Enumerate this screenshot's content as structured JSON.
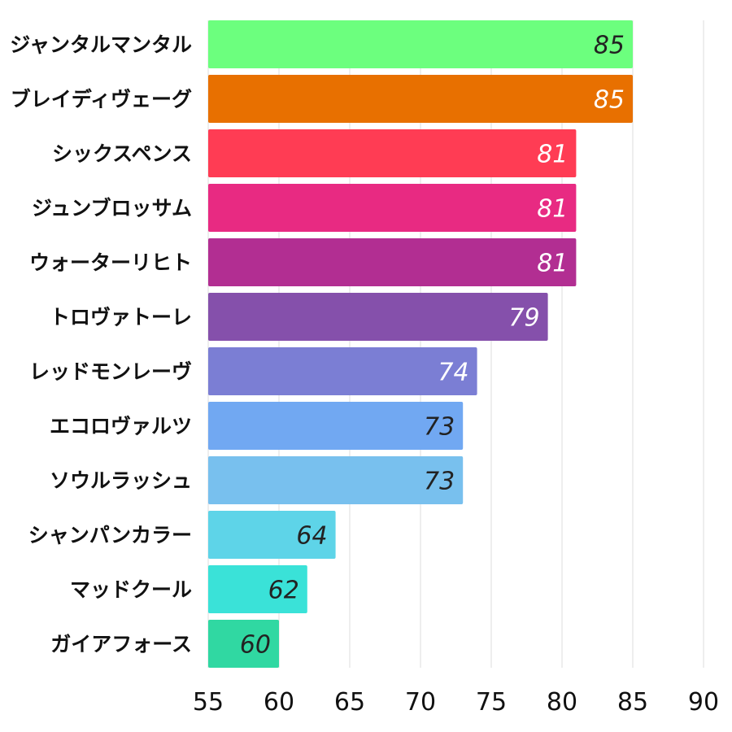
{
  "chart_data": {
    "type": "bar",
    "orientation": "horizontal",
    "categories": [
      "ジャンタルマンタル",
      "ブレイディヴェーグ",
      "シックスペンス",
      "ジュンブロッサム",
      "ウォーターリヒト",
      "トロヴァトーレ",
      "レッドモンレーヴ",
      "エコロヴァルツ",
      "ソウルラッシュ",
      "シャンパンカラー",
      "マッドクール",
      "ガイアフォース"
    ],
    "values": [
      85,
      85,
      81,
      81,
      81,
      79,
      74,
      73,
      73,
      64,
      62,
      60
    ],
    "colors": [
      "#6cff7e",
      "#e87000",
      "#ff3c54",
      "#e82a82",
      "#b22e92",
      "#8550ab",
      "#7b7ed4",
      "#71a8f2",
      "#78c0ee",
      "#5ed4e8",
      "#3ae2d8",
      "#30d8a2"
    ],
    "value_label_colors": [
      "#222222",
      "#ffffff",
      "#ffffff",
      "#ffffff",
      "#ffffff",
      "#ffffff",
      "#ffffff",
      "#222222",
      "#222222",
      "#222222",
      "#222222",
      "#222222"
    ],
    "xticks": [
      "55",
      "60",
      "65",
      "70",
      "75",
      "80",
      "85",
      "90"
    ],
    "xlim": [
      55,
      90
    ],
    "grid": true,
    "title": "",
    "xlabel": "",
    "ylabel": ""
  }
}
